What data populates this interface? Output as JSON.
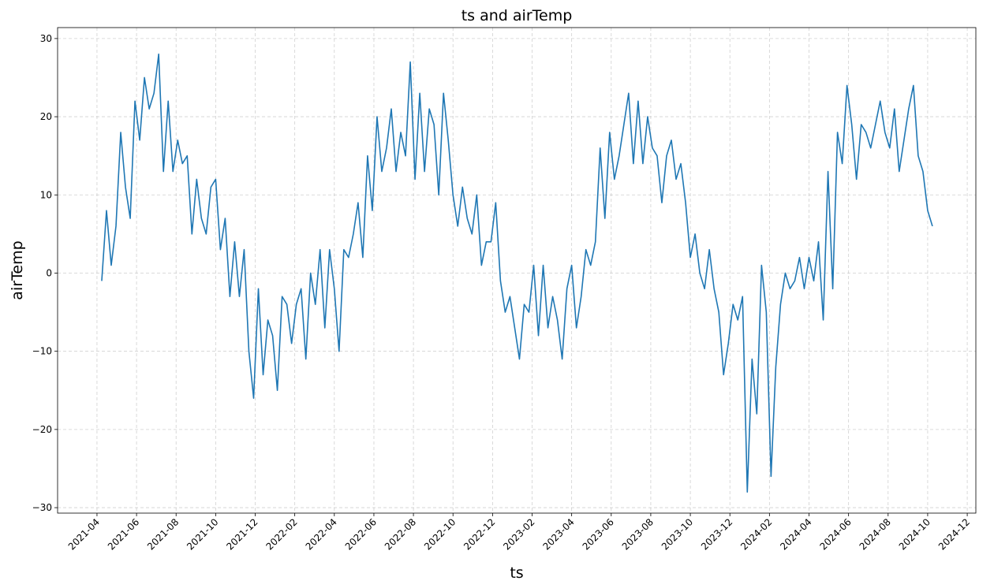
{
  "chart_data": {
    "type": "line",
    "title": "ts and airTemp",
    "x_label": "ts",
    "y_label": "airTemp",
    "x": [
      2021.27,
      2021.29,
      2021.31,
      2021.33,
      2021.35,
      2021.37,
      2021.39,
      2021.41,
      2021.43,
      2021.45,
      2021.47,
      2021.49,
      2021.51,
      2021.53,
      2021.55,
      2021.57,
      2021.59,
      2021.61,
      2021.63,
      2021.65,
      2021.67,
      2021.69,
      2021.71,
      2021.73,
      2021.75,
      2021.77,
      2021.79,
      2021.81,
      2021.83,
      2021.85,
      2021.87,
      2021.89,
      2021.91,
      2021.93,
      2021.95,
      2021.97,
      2021.99,
      2022.01,
      2022.03,
      2022.05,
      2022.07,
      2022.09,
      2022.11,
      2022.13,
      2022.15,
      2022.17,
      2022.19,
      2022.21,
      2022.23,
      2022.25,
      2022.27,
      2022.29,
      2022.31,
      2022.33,
      2022.35,
      2022.37,
      2022.39,
      2022.41,
      2022.43,
      2022.45,
      2022.47,
      2022.49,
      2022.51,
      2022.53,
      2022.55,
      2022.57,
      2022.59,
      2022.61,
      2022.63,
      2022.65,
      2022.67,
      2022.69,
      2022.71,
      2022.73,
      2022.75,
      2022.77,
      2022.79,
      2022.81,
      2022.83,
      2022.85,
      2022.87,
      2022.89,
      2022.91,
      2022.93,
      2022.95,
      2022.97,
      2022.99,
      2023.01,
      2023.03,
      2023.05,
      2023.07,
      2023.09,
      2023.11,
      2023.13,
      2023.15,
      2023.17,
      2023.19,
      2023.21,
      2023.23,
      2023.25,
      2023.27,
      2023.29,
      2023.31,
      2023.33,
      2023.35,
      2023.37,
      2023.39,
      2023.41,
      2023.43,
      2023.45,
      2023.47,
      2023.49,
      2023.51,
      2023.53,
      2023.55,
      2023.57,
      2023.59,
      2023.61,
      2023.63,
      2023.65,
      2023.67,
      2023.69,
      2023.71,
      2023.73,
      2023.75,
      2023.77,
      2023.79,
      2023.81,
      2023.83,
      2023.85,
      2023.87,
      2023.89,
      2023.91,
      2023.93,
      2023.95,
      2023.97,
      2023.99,
      2024.01,
      2024.03,
      2024.05,
      2024.07,
      2024.09,
      2024.11,
      2024.13,
      2024.15,
      2024.17,
      2024.19,
      2024.21,
      2024.23,
      2024.25,
      2024.27,
      2024.29,
      2024.31,
      2024.33,
      2024.35,
      2024.37,
      2024.39,
      2024.41,
      2024.43,
      2024.45,
      2024.47,
      2024.49,
      2024.51,
      2024.53,
      2024.55,
      2024.57,
      2024.59,
      2024.61,
      2024.63,
      2024.65,
      2024.67,
      2024.69,
      2024.71,
      2024.73,
      2024.75,
      2024.77
    ],
    "values": [
      -1,
      8,
      1,
      6,
      18,
      11,
      7,
      22,
      17,
      25,
      21,
      23,
      28,
      13,
      22,
      13,
      17,
      14,
      15,
      5,
      12,
      7,
      5,
      11,
      12,
      3,
      7,
      -3,
      4,
      -3,
      3,
      -10,
      -16,
      -2,
      -13,
      -6,
      -8,
      -15,
      -3,
      -4,
      -9,
      -4,
      -2,
      -11,
      0,
      -4,
      3,
      -7,
      3,
      -2,
      -10,
      3,
      2,
      5,
      9,
      2,
      15,
      8,
      20,
      13,
      16,
      21,
      13,
      18,
      15,
      27,
      12,
      23,
      13,
      21,
      19,
      10,
      23,
      17,
      10,
      6,
      11,
      7,
      5,
      10,
      1,
      4,
      4,
      9,
      -1,
      -5,
      -3,
      -7,
      -11,
      -4,
      -5,
      1,
      -8,
      1,
      -7,
      -3,
      -6,
      -11,
      -2,
      1,
      -7,
      -3,
      3,
      1,
      4,
      16,
      7,
      18,
      12,
      15,
      19,
      23,
      14,
      22,
      14,
      20,
      16,
      15,
      9,
      15,
      17,
      12,
      14,
      9,
      2,
      5,
      0,
      -2,
      3,
      -2,
      -5,
      -13,
      -9,
      -4,
      -6,
      -3,
      -28,
      -11,
      -18,
      1,
      -5,
      -26,
      -12,
      -4,
      0,
      -2,
      -1,
      2,
      -2,
      2,
      -1,
      4,
      -6,
      13,
      -2,
      18,
      14,
      24,
      19,
      12,
      19,
      18,
      16,
      19,
      22,
      18,
      16,
      21,
      13,
      17,
      21,
      24,
      15,
      13,
      8,
      6
    ],
    "color": "#1f77b4",
    "xlim": [
      2021.084,
      2024.953
    ],
    "xticks": [
      {
        "value": 2021.25,
        "label": "2021-04"
      },
      {
        "value": 2021.4167,
        "label": "2021-06"
      },
      {
        "value": 2021.5833,
        "label": "2021-08"
      },
      {
        "value": 2021.75,
        "label": "2021-10"
      },
      {
        "value": 2021.9167,
        "label": "2021-12"
      },
      {
        "value": 2022.0833,
        "label": "2022-02"
      },
      {
        "value": 2022.25,
        "label": "2022-04"
      },
      {
        "value": 2022.4167,
        "label": "2022-06"
      },
      {
        "value": 2022.5833,
        "label": "2022-08"
      },
      {
        "value": 2022.75,
        "label": "2022-10"
      },
      {
        "value": 2022.9167,
        "label": "2022-12"
      },
      {
        "value": 2023.0833,
        "label": "2023-02"
      },
      {
        "value": 2023.25,
        "label": "2023-04"
      },
      {
        "value": 2023.4167,
        "label": "2023-06"
      },
      {
        "value": 2023.5833,
        "label": "2023-08"
      },
      {
        "value": 2023.75,
        "label": "2023-10"
      },
      {
        "value": 2023.9167,
        "label": "2023-12"
      },
      {
        "value": 2024.0833,
        "label": "2024-02"
      },
      {
        "value": 2024.25,
        "label": "2024-04"
      },
      {
        "value": 2024.4167,
        "label": "2024-06"
      },
      {
        "value": 2024.5833,
        "label": "2024-08"
      },
      {
        "value": 2024.75,
        "label": "2024-10"
      },
      {
        "value": 2024.9167,
        "label": "2024-12"
      }
    ],
    "ylim": [
      -30.7,
      31.4
    ],
    "yticks": [
      {
        "value": -30,
        "label": "−30"
      },
      {
        "value": -20,
        "label": "−20"
      },
      {
        "value": -10,
        "label": "−10"
      },
      0,
      10,
      20,
      30
    ],
    "grid": true
  }
}
